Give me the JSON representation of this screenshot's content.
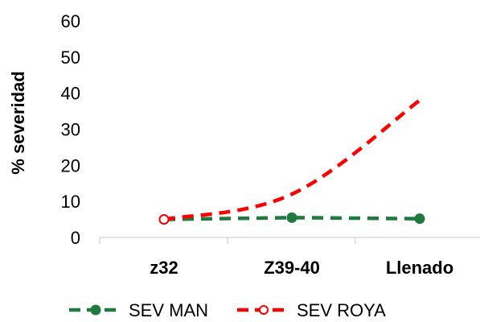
{
  "chart_data": {
    "type": "line",
    "title": "",
    "xlabel": "",
    "ylabel": "% severidad",
    "categories": [
      "z32",
      "Z39-40",
      "Llenado"
    ],
    "ylim": [
      0,
      60
    ],
    "yticks": [
      0,
      10,
      20,
      30,
      40,
      50,
      60
    ],
    "grid": false,
    "legend_position": "bottom",
    "series": [
      {
        "name": "SEV MAN",
        "values": [
          5,
          5.5,
          5.2
        ],
        "color": "#1e7a3e",
        "line_style": "dashed",
        "marker": "filled-circle"
      },
      {
        "name": "SEV ROYA",
        "values": [
          5,
          12,
          38
        ],
        "color": "#ff0000",
        "line_style": "dashed",
        "marker": "hollow-circle",
        "smooth": true
      }
    ]
  }
}
